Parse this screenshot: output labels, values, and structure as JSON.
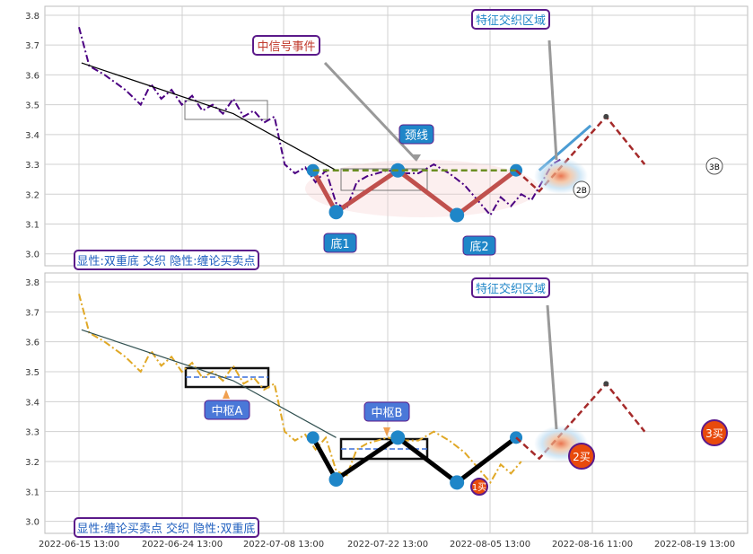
{
  "chart_data": [
    {
      "type": "line",
      "panel": "top",
      "xlabel": "",
      "ylabel": "",
      "ylim": [
        2.96,
        3.83
      ],
      "y_ticks": [
        "3.0",
        "3.1",
        "3.2",
        "3.3",
        "3.4",
        "3.5",
        "3.6",
        "3.7",
        "3.8"
      ],
      "grid": true,
      "caption": "显性:双重底 交织 隐性:缠论买卖点",
      "annotations": {
        "signal_event": "中信号事件",
        "feature_zone": "特征交织区域",
        "neckline": "颈线",
        "bottom1": "底1",
        "bottom2": "底2",
        "buy2_marker": "2B",
        "buy3_marker": "3B"
      },
      "series": [
        {
          "role": "price",
          "color": "#4b0082",
          "style": "dash-dot",
          "x": [
            0,
            0.2,
            0.5,
            0.9,
            1.2,
            1.4,
            1.6,
            1.8,
            2.0,
            2.2,
            2.4,
            2.6,
            2.8,
            3.0,
            3.2,
            3.4,
            3.6,
            3.8,
            4.0,
            4.2,
            4.4,
            4.6,
            4.8,
            5.0,
            5.2,
            5.4,
            5.6,
            5.8,
            6.0,
            6.3,
            6.6,
            6.9,
            7.2,
            7.5,
            7.8,
            8.0,
            8.2,
            8.4,
            8.6,
            8.8,
            9.0,
            9.2,
            9.4
          ],
          "y": [
            3.76,
            3.63,
            3.6,
            3.55,
            3.5,
            3.57,
            3.52,
            3.55,
            3.5,
            3.53,
            3.48,
            3.5,
            3.47,
            3.52,
            3.46,
            3.48,
            3.44,
            3.46,
            3.3,
            3.27,
            3.29,
            3.24,
            3.28,
            3.17,
            3.15,
            3.24,
            3.26,
            3.27,
            3.28,
            3.27,
            3.27,
            3.3,
            3.27,
            3.23,
            3.17,
            3.13,
            3.19,
            3.16,
            3.2,
            3.18,
            3.24,
            3.3,
            3.32
          ]
        },
        {
          "role": "trend",
          "color": "#000000",
          "style": "solid",
          "x": [
            0.05,
            3.0,
            5.0
          ],
          "y": [
            3.64,
            3.47,
            3.28
          ]
        },
        {
          "role": "double-bottom",
          "color": "#c0504d",
          "style": "thick",
          "x": [
            4.55,
            5.0,
            6.2,
            7.35,
            8.5
          ],
          "y": [
            3.28,
            3.14,
            3.28,
            3.13,
            3.28
          ]
        },
        {
          "role": "neckline",
          "color": "#6b8e23",
          "style": "dashed",
          "x": [
            4.55,
            8.5
          ],
          "y": [
            3.28,
            3.28
          ]
        },
        {
          "role": "projection",
          "color": "#a52a2a",
          "style": "dashed",
          "x": [
            8.5,
            8.95,
            10.25,
            11.0
          ],
          "y": [
            3.28,
            3.21,
            3.46,
            3.3
          ]
        },
        {
          "role": "breakout",
          "color": "#4b9cd3",
          "style": "solid",
          "x": [
            8.95,
            9.95
          ],
          "y": [
            3.28,
            3.43
          ]
        }
      ]
    },
    {
      "type": "line",
      "panel": "bottom",
      "xlabel": "",
      "ylabel": "",
      "ylim": [
        2.96,
        3.83
      ],
      "y_ticks": [
        "3.0",
        "3.1",
        "3.2",
        "3.3",
        "3.4",
        "3.5",
        "3.6",
        "3.7",
        "3.8"
      ],
      "x_ticks": [
        "2022-06-15 13:00",
        "2022-06-24 13:00",
        "2022-07-08 13:00",
        "2022-07-22 13:00",
        "2022-08-05 13:00",
        "2022-08-16 11:00",
        "2022-08-19 13:00"
      ],
      "grid": true,
      "caption": "显性:缠论买卖点 交织 隐性:双重底",
      "annotations": {
        "feature_zone": "特征交织区域",
        "pivot_a": "中枢A",
        "pivot_b": "中枢B",
        "buy1": "1买",
        "buy2": "2买",
        "buy3": "3买"
      },
      "series": [
        {
          "role": "price",
          "color": "#e0a826",
          "style": "dash-dot",
          "x": [
            0,
            0.2,
            0.5,
            0.9,
            1.2,
            1.4,
            1.6,
            1.8,
            2.0,
            2.2,
            2.4,
            2.6,
            2.8,
            3.0,
            3.2,
            3.4,
            3.6,
            3.8,
            4.0,
            4.2,
            4.4,
            4.6,
            4.8,
            5.0,
            5.2,
            5.4,
            5.6,
            5.8,
            6.0,
            6.3,
            6.6,
            6.9,
            7.2,
            7.5,
            7.8,
            8.0,
            8.2,
            8.4,
            8.6
          ],
          "y": [
            3.76,
            3.63,
            3.6,
            3.55,
            3.5,
            3.57,
            3.52,
            3.55,
            3.5,
            3.53,
            3.48,
            3.5,
            3.47,
            3.52,
            3.46,
            3.48,
            3.44,
            3.46,
            3.3,
            3.27,
            3.29,
            3.24,
            3.28,
            3.17,
            3.15,
            3.24,
            3.26,
            3.27,
            3.28,
            3.27,
            3.27,
            3.3,
            3.27,
            3.23,
            3.17,
            3.13,
            3.19,
            3.16,
            3.2
          ]
        },
        {
          "role": "trend",
          "color": "#2f4f4f",
          "style": "solid",
          "x": [
            0.05,
            3.0,
            5.0
          ],
          "y": [
            3.64,
            3.47,
            3.28
          ]
        },
        {
          "role": "strokes",
          "color": "#000000",
          "style": "thick",
          "x": [
            4.55,
            5.0,
            6.2,
            7.35,
            8.5
          ],
          "y": [
            3.28,
            3.14,
            3.28,
            3.13,
            3.28
          ]
        },
        {
          "role": "projection",
          "color": "#a52a2a",
          "style": "dashed",
          "x": [
            8.5,
            8.95,
            10.25,
            11.0
          ],
          "y": [
            3.28,
            3.21,
            3.46,
            3.3
          ]
        }
      ]
    }
  ],
  "colors": {
    "grid": "#d0d0d0",
    "caption_border": "#5b1a8a",
    "caption_text": "#1f5fbf",
    "callout_fill": "#1f86c8",
    "buy_marker": "#e84a0c"
  }
}
